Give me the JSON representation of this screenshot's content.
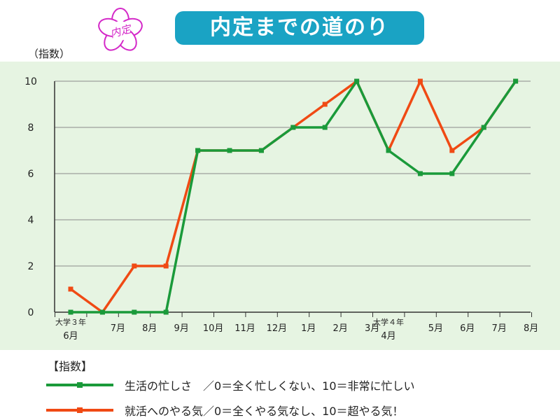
{
  "page": {
    "title": "内定までの道のり",
    "flower_label": "内定",
    "unit_label": "（指数）"
  },
  "legend": {
    "title": "【指数】",
    "items": [
      {
        "text": "生活の忙しさ　／0＝全く忙しくない、10＝非常に忙しい",
        "color": "#1a9a3a"
      },
      {
        "text": "就活へのやる気／0＝全くやる気なし、10＝超やる気！",
        "color": "#f04a14"
      }
    ]
  },
  "colors": {
    "chart_bg": "#e6f4e2",
    "title_bg": "#1aa3c4",
    "flower": "#d428c8",
    "grid": "#8a8a8a"
  },
  "chart_data": {
    "type": "line",
    "title": "内定までの道のり",
    "ylabel": "（指数）",
    "ylim": [
      0,
      10
    ],
    "yticks": [
      0,
      2,
      4,
      6,
      8,
      10
    ],
    "grid": true,
    "legend_position": "bottom",
    "categories": [
      {
        "label": "大学３年",
        "sub": "6月"
      },
      {
        "label": "7月"
      },
      {
        "label": "8月"
      },
      {
        "label": "9月"
      },
      {
        "label": "10月"
      },
      {
        "label": "11月"
      },
      {
        "label": "12月"
      },
      {
        "label": "1月"
      },
      {
        "label": "2月"
      },
      {
        "label": "3月"
      },
      {
        "label": "大学４年",
        "sub": "4月"
      },
      {
        "label": "5月"
      },
      {
        "label": "6月"
      },
      {
        "label": "7月"
      },
      {
        "label": "8月"
      }
    ],
    "series": [
      {
        "name": "就活へのやる気",
        "color": "#f04a14",
        "values": [
          1,
          0,
          2,
          2,
          7,
          7,
          7,
          8,
          9,
          10,
          7,
          10,
          7,
          8,
          10
        ]
      },
      {
        "name": "生活の忙しさ",
        "color": "#1a9a3a",
        "values": [
          0,
          0,
          0,
          0,
          7,
          7,
          7,
          8,
          8,
          10,
          7,
          6,
          6,
          8,
          10
        ]
      }
    ]
  }
}
